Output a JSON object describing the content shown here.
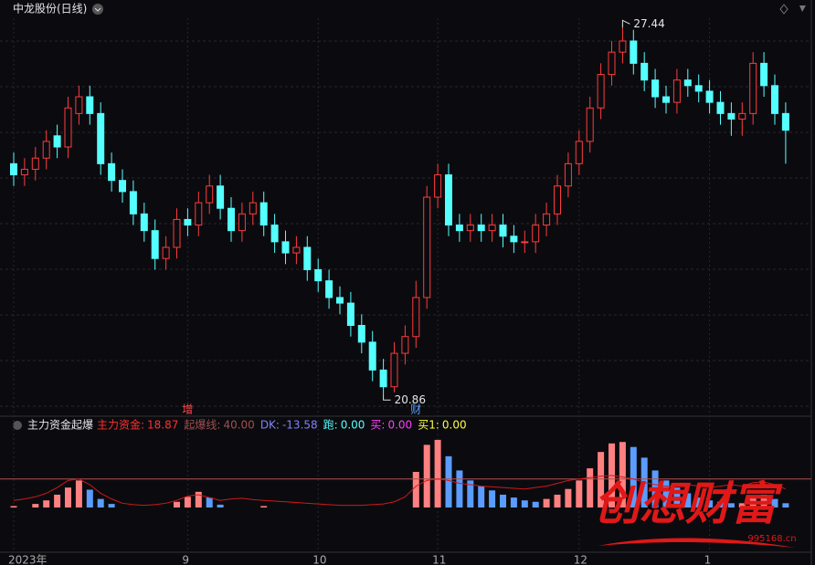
{
  "title": "中龙股份(日线)",
  "chart_data": [
    {
      "type": "candlestick",
      "categories": [
        "2023年",
        null,
        null,
        null,
        null,
        null,
        null,
        null,
        null,
        null,
        null,
        null,
        null,
        null,
        null,
        null,
        "9",
        null,
        null,
        null,
        null,
        null,
        null,
        null,
        null,
        null,
        null,
        null,
        "10",
        null,
        null,
        null,
        null,
        null,
        null,
        null,
        null,
        null,
        null,
        "11",
        null,
        null,
        null,
        null,
        null,
        null,
        null,
        null,
        null,
        null,
        null,
        null,
        "12",
        null,
        null,
        null,
        null,
        null,
        null,
        null,
        null,
        null,
        null,
        null,
        "1",
        null,
        null,
        null,
        null,
        null,
        null,
        null
      ],
      "open": [
        25.0,
        24.8,
        24.9,
        25.1,
        25.5,
        25.3,
        25.9,
        26.2,
        25.9,
        25.0,
        24.7,
        24.5,
        24.1,
        23.8,
        23.3,
        23.5,
        24.0,
        23.9,
        24.3,
        24.6,
        24.2,
        23.8,
        24.1,
        24.3,
        23.9,
        23.6,
        23.4,
        23.5,
        23.1,
        22.9,
        22.6,
        22.5,
        22.1,
        21.8,
        21.3,
        21.0,
        21.6,
        21.9,
        22.6,
        24.4,
        24.8,
        23.9,
        23.8,
        23.9,
        23.8,
        23.9,
        23.7,
        23.6,
        23.6,
        23.9,
        24.1,
        24.6,
        25.0,
        25.4,
        26.0,
        26.6,
        27.0,
        27.2,
        26.8,
        26.5,
        26.2,
        26.1,
        26.5,
        26.4,
        26.3,
        26.1,
        25.9,
        25.8,
        25.9,
        26.8,
        26.4,
        25.9
      ],
      "high": [
        25.2,
        25.1,
        25.3,
        25.6,
        25.7,
        26.2,
        26.4,
        26.4,
        26.1,
        25.2,
        24.9,
        24.7,
        24.3,
        24.0,
        23.7,
        24.2,
        24.2,
        24.5,
        24.8,
        24.8,
        24.4,
        24.3,
        24.5,
        24.5,
        24.1,
        23.8,
        23.7,
        23.7,
        23.3,
        23.1,
        22.8,
        22.7,
        22.3,
        22.0,
        21.5,
        21.8,
        22.1,
        22.9,
        24.6,
        25.0,
        25.0,
        24.1,
        24.1,
        24.1,
        24.1,
        24.1,
        23.9,
        23.8,
        24.1,
        24.3,
        24.8,
        25.2,
        25.6,
        26.2,
        26.8,
        27.2,
        27.44,
        27.4,
        27.0,
        26.7,
        26.4,
        26.7,
        26.7,
        26.6,
        26.5,
        26.3,
        26.1,
        26.1,
        27.0,
        27.0,
        26.6,
        26.1
      ],
      "low": [
        24.6,
        24.6,
        24.7,
        24.9,
        25.1,
        25.1,
        25.7,
        25.7,
        24.8,
        24.5,
        24.3,
        23.9,
        23.6,
        23.1,
        23.1,
        23.3,
        23.7,
        23.7,
        24.1,
        24.0,
        23.6,
        23.6,
        23.9,
        23.7,
        23.4,
        23.2,
        23.2,
        22.9,
        22.7,
        22.4,
        22.3,
        21.9,
        21.6,
        21.1,
        20.86,
        20.9,
        21.4,
        21.7,
        22.4,
        24.2,
        23.7,
        23.6,
        23.6,
        23.6,
        23.6,
        23.5,
        23.4,
        23.4,
        23.4,
        23.7,
        23.9,
        24.4,
        24.8,
        25.2,
        25.8,
        26.4,
        26.8,
        26.6,
        26.3,
        26.0,
        25.9,
        25.9,
        26.2,
        26.1,
        25.9,
        25.7,
        25.5,
        25.5,
        25.7,
        26.2,
        25.7,
        25.0
      ],
      "close": [
        24.8,
        24.9,
        25.1,
        25.4,
        25.3,
        26.0,
        26.2,
        25.9,
        25.0,
        24.7,
        24.5,
        24.1,
        23.8,
        23.3,
        23.5,
        24.0,
        23.9,
        24.3,
        24.6,
        24.2,
        23.8,
        24.1,
        24.3,
        23.9,
        23.6,
        23.4,
        23.5,
        23.1,
        22.9,
        22.6,
        22.5,
        22.1,
        21.8,
        21.3,
        21.0,
        21.6,
        21.9,
        22.6,
        24.4,
        24.8,
        23.9,
        23.8,
        23.9,
        23.8,
        23.9,
        23.7,
        23.6,
        23.6,
        23.9,
        24.1,
        24.6,
        25.0,
        25.4,
        26.0,
        26.6,
        27.0,
        27.2,
        26.8,
        26.5,
        26.2,
        26.1,
        26.5,
        26.4,
        26.3,
        26.1,
        25.9,
        25.8,
        25.9,
        26.8,
        26.4,
        25.9,
        25.6
      ],
      "ylim": [
        20.57,
        27.69
      ],
      "up_color": "#ff3b3b",
      "down_color": "#54ffff",
      "markers": [
        {
          "text": "增",
          "index": 16,
          "color": "#ff4a4a"
        },
        {
          "text": "财",
          "index": 37,
          "color": "#5aa0ff"
        }
      ]
    },
    {
      "type": "indicator",
      "title": "主力资金起爆",
      "legend": [
        {
          "label": "主力资金:",
          "value": 18.87,
          "color": "#ff3030"
        },
        {
          "label": "起爆线:",
          "value": {
            "value": 40,
            "label": "40.00"
          },
          "color": "#a05050"
        },
        {
          "label": "DK:",
          "value": -13.58,
          "color": "#8080ff"
        },
        {
          "label": "跑:",
          "value": {
            "value": 0,
            "label": "0.00"
          },
          "color": "#54ffff"
        },
        {
          "label": "买:",
          "value": {
            "value": 0,
            "label": "0.00"
          },
          "color": "#ff40ff"
        },
        {
          "label": "买1:",
          "value": {
            "value": 0,
            "label": "0.00"
          },
          "color": "#ffff40"
        }
      ],
      "bars": [
        2,
        0,
        5,
        10,
        18,
        28,
        38,
        25,
        12,
        5,
        0,
        0,
        0,
        0,
        0,
        8,
        15,
        22,
        14,
        4,
        0,
        0,
        0,
        2,
        0,
        0,
        0,
        0,
        0,
        0,
        0,
        0,
        0,
        0,
        0,
        0,
        0,
        50,
        88,
        95,
        72,
        52,
        38,
        30,
        24,
        18,
        14,
        10,
        8,
        12,
        18,
        26,
        38,
        55,
        78,
        90,
        92,
        85,
        70,
        52,
        38,
        28,
        20,
        14,
        10,
        8,
        6,
        6,
        14,
        18,
        12,
        6
      ],
      "line": [
        10,
        12,
        15,
        20,
        28,
        38,
        40,
        32,
        20,
        12,
        6,
        4,
        3,
        4,
        6,
        10,
        16,
        18,
        14,
        10,
        12,
        13,
        11,
        10,
        9,
        8,
        7,
        6,
        5,
        4,
        3,
        3,
        3,
        4,
        5,
        8,
        15,
        30,
        38,
        40,
        38,
        34,
        32,
        30,
        29,
        28,
        27,
        26,
        28,
        30,
        34,
        38,
        40,
        42,
        44,
        45,
        43,
        40,
        35,
        32,
        30,
        30,
        32,
        30,
        28,
        30,
        32,
        30,
        35,
        36,
        32,
        26
      ],
      "ylim": [
        0,
        100
      ],
      "up_color": "#ff8080",
      "down_color": "#5a9cff",
      "line_color": "#d01818"
    }
  ],
  "watermark": {
    "text": "创想财富",
    "url": "995168.cn"
  }
}
